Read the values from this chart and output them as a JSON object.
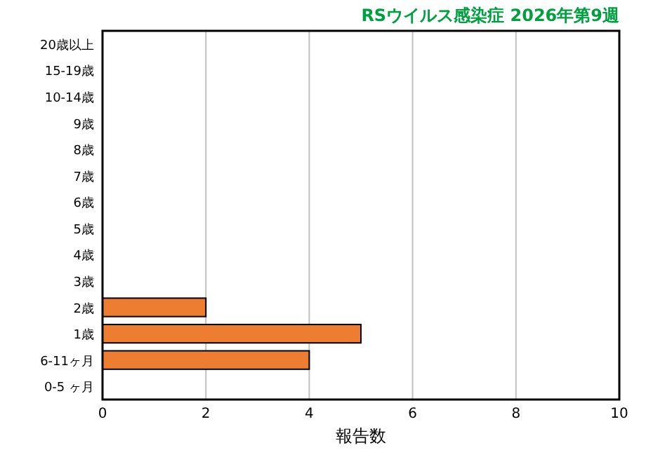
{
  "chart_data": {
    "type": "bar",
    "orientation": "horizontal",
    "title": "RSウイルス感染症 2026年第9週",
    "xlabel": "報告数",
    "categories": [
      "20歳以上",
      "15-19歳",
      "10-14歳",
      "9歳",
      "8歳",
      "7歳",
      "6歳",
      "5歳",
      "4歳",
      "3歳",
      "2歳",
      "1歳",
      "6-11ヶ月",
      "0-5 ヶ月"
    ],
    "values": [
      0,
      0,
      0,
      0,
      0,
      0,
      0,
      0,
      0,
      0,
      2,
      5,
      4,
      0
    ],
    "color": "#ed7d31",
    "xlim": [
      0,
      10
    ],
    "xticks": [
      0,
      2,
      4,
      6,
      8,
      10
    ],
    "grid": "x"
  }
}
